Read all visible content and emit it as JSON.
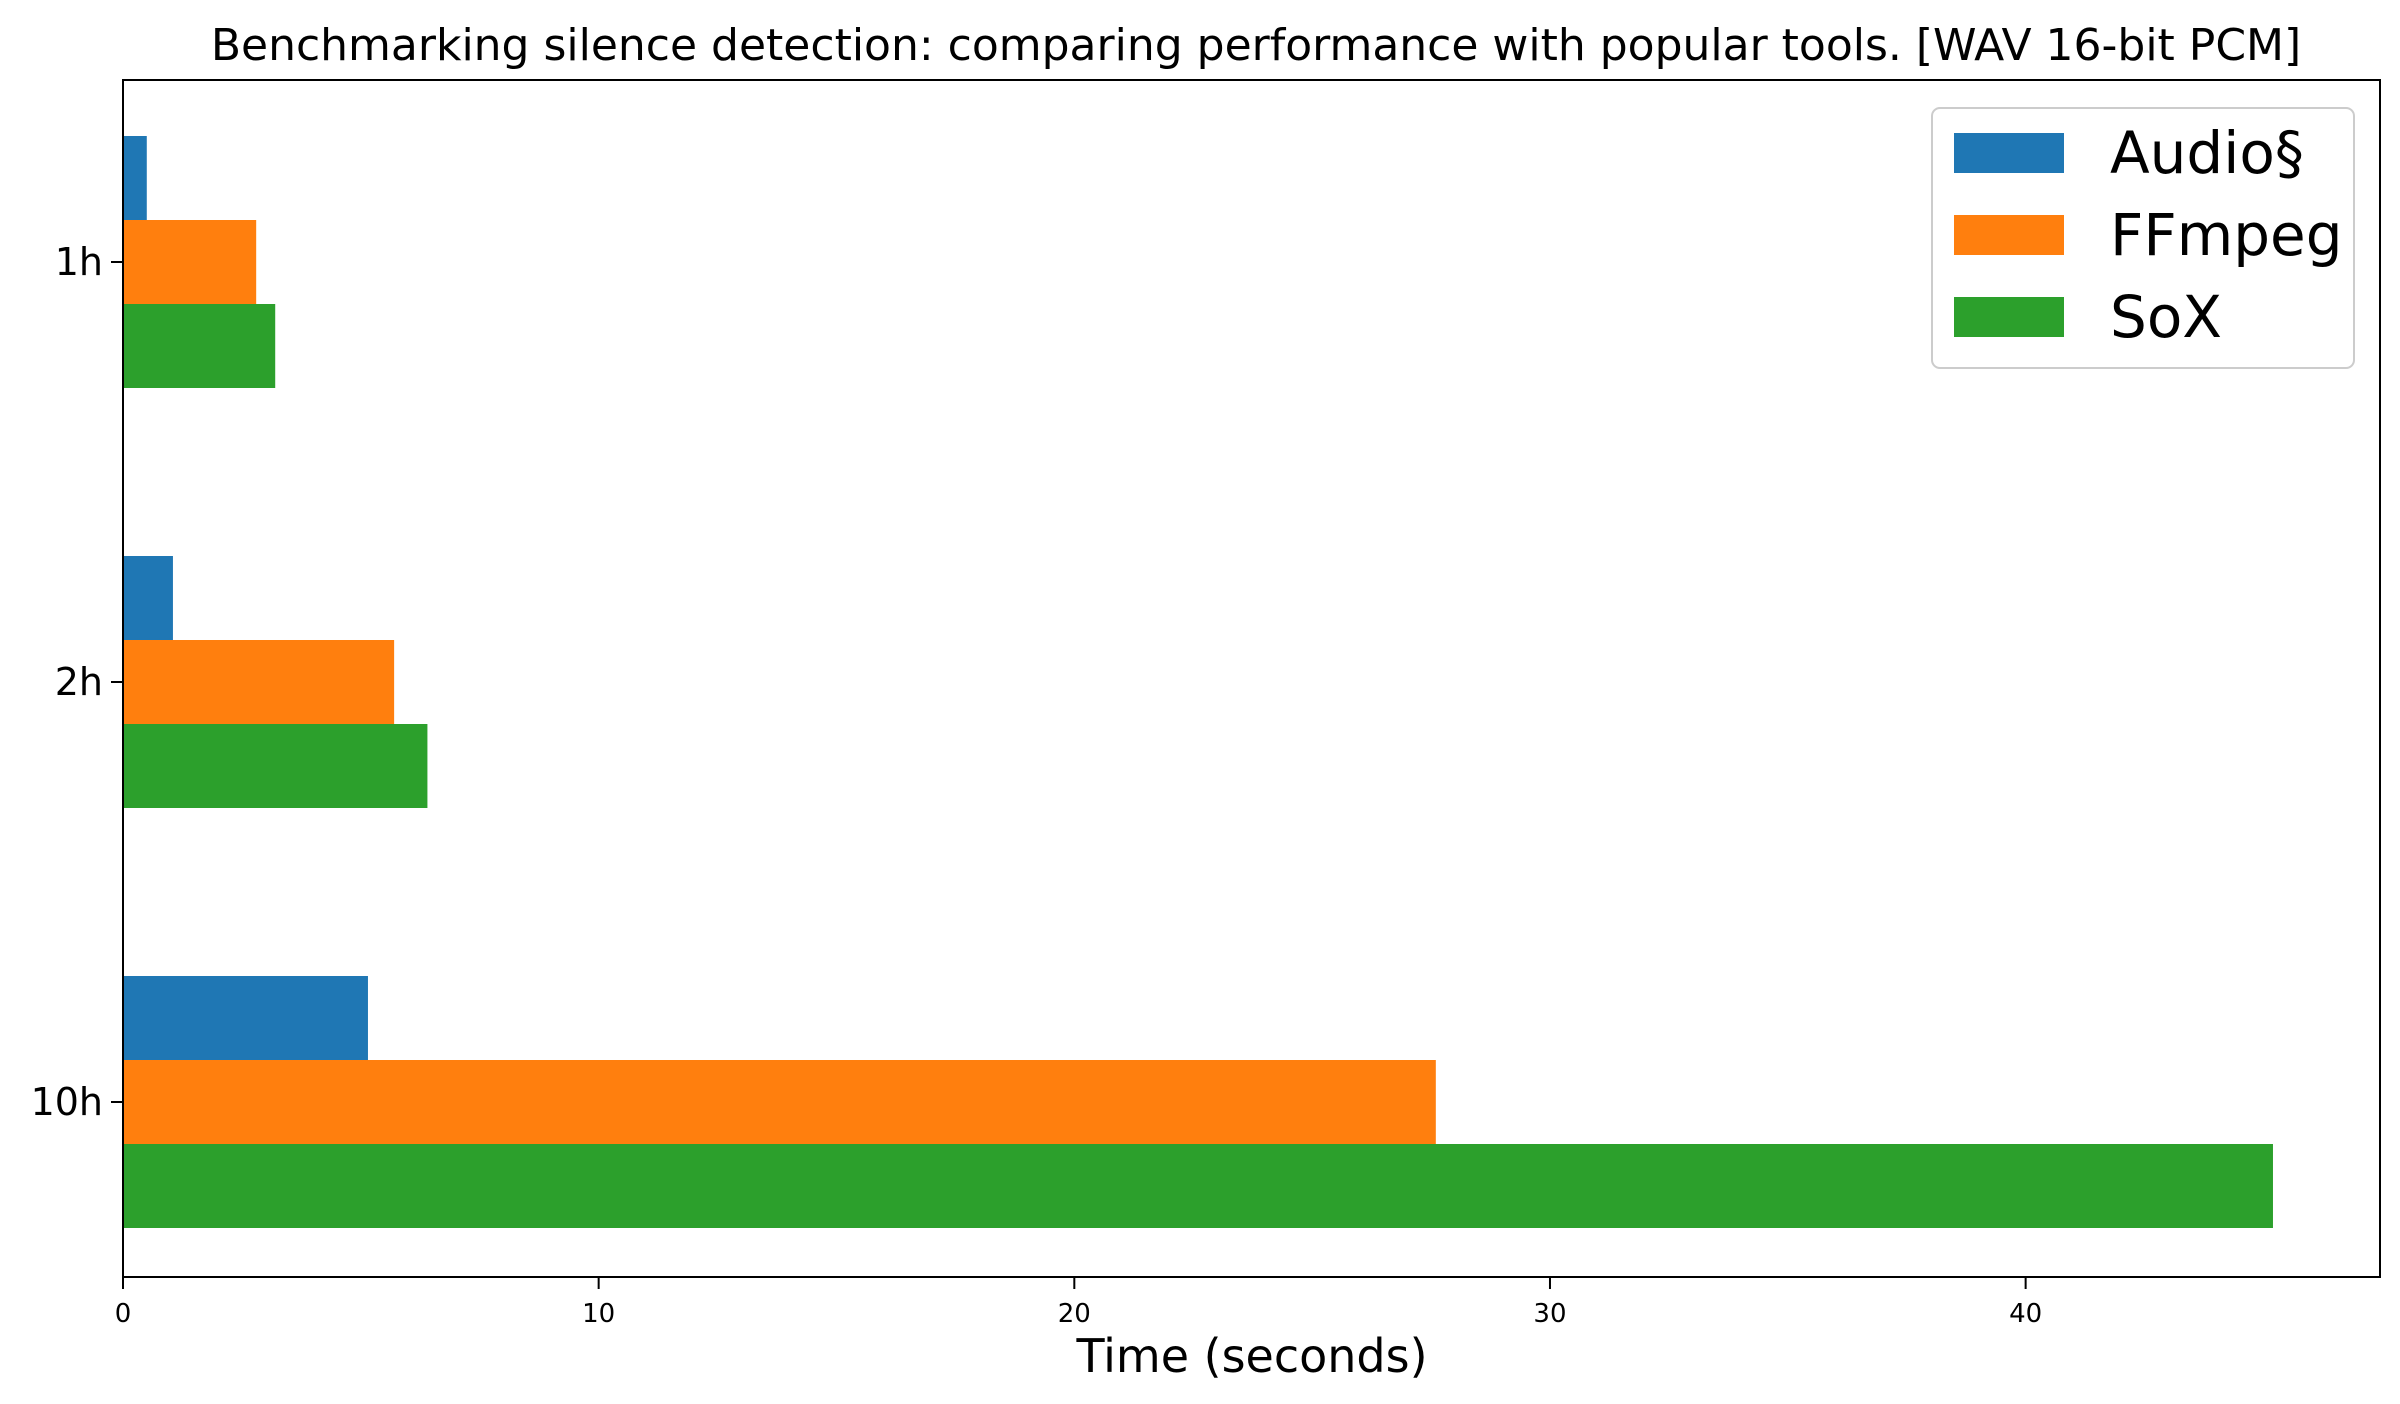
{
  "chart_data": {
    "type": "bar",
    "orientation": "horizontal",
    "title": "Benchmarking silence detection: comparing performance with popular tools. [WAV 16-bit PCM]",
    "xlabel": "Time (seconds)",
    "ylabel": "",
    "categories": [
      "1h",
      "2h",
      "10h"
    ],
    "series": [
      {
        "name": "Audio§",
        "color": "#1f77b4",
        "values": [
          0.5,
          1.05,
          5.15
        ]
      },
      {
        "name": "FFmpeg",
        "color": "#ff7f0e",
        "values": [
          2.8,
          5.7,
          27.6
        ]
      },
      {
        "name": "SoX",
        "color": "#2ca02c",
        "values": [
          3.2,
          6.4,
          45.2
        ]
      }
    ],
    "xlim": [
      0,
      47.45
    ],
    "xticks": [
      0,
      10,
      20,
      30,
      40
    ],
    "grid": false,
    "legend_position": "top-right"
  }
}
